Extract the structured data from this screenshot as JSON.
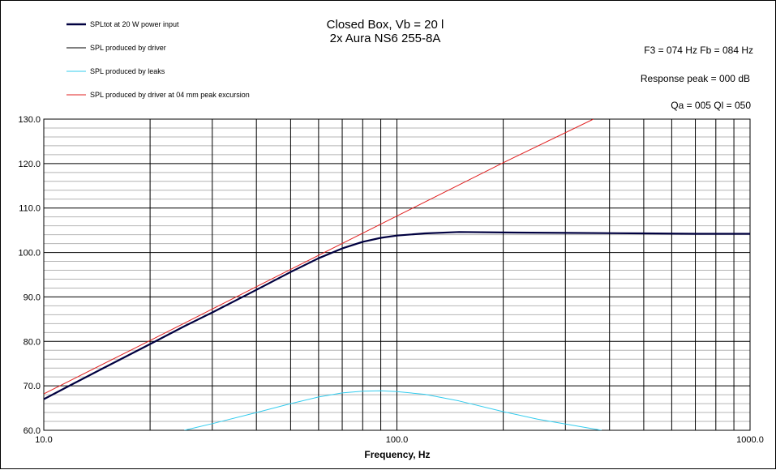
{
  "chart_data": {
    "type": "line",
    "title": [
      "Closed Box, Vb = 20 l",
      "2x Aura NS6 255-8A"
    ],
    "info": [
      "F3 = 074 Hz  Fb = 084 Hz",
      "Response peak = 000  dB",
      "Qa = 005   Ql = 050"
    ],
    "xlabel": "Frequency, Hz",
    "ylabel": "",
    "xscale": "log",
    "xlim": [
      10,
      1000
    ],
    "ylim": [
      60,
      130
    ],
    "x_ticks": [
      10,
      100,
      1000
    ],
    "x_tick_labels": [
      "10.0",
      "100.0",
      "1000.0"
    ],
    "y_ticks": [
      60,
      70,
      80,
      90,
      100,
      110,
      120,
      130
    ],
    "y_tick_labels": [
      "60.0",
      "70.0",
      "80.0",
      "90.0",
      "100.0",
      "110.0",
      "120.0",
      "130.0"
    ],
    "grid": true,
    "legend_position": "top-left",
    "series": [
      {
        "name": "SPLtot at 20 W power input",
        "color": "#000040",
        "x": [
          10,
          12,
          15,
          20,
          25,
          30,
          40,
          50,
          60,
          70,
          80,
          90,
          100,
          120,
          150,
          200,
          300,
          500,
          700,
          1000
        ],
        "y": [
          67.0,
          70.3,
          74.3,
          79.4,
          83.4,
          86.5,
          91.6,
          95.6,
          98.7,
          100.9,
          102.4,
          103.3,
          103.8,
          104.3,
          104.6,
          104.5,
          104.4,
          104.3,
          104.2,
          104.2
        ]
      },
      {
        "name": "SPL produced by driver",
        "color": "#000000",
        "x": [
          10,
          12,
          15,
          20,
          25,
          30,
          40,
          50,
          60,
          70,
          80,
          90,
          100,
          120,
          150,
          200,
          300,
          500,
          700,
          1000
        ],
        "y": [
          67.0,
          70.3,
          74.3,
          79.4,
          83.4,
          86.5,
          91.6,
          95.6,
          98.7,
          100.9,
          102.4,
          103.3,
          103.8,
          104.3,
          104.6,
          104.5,
          104.4,
          104.3,
          104.2,
          104.2
        ]
      },
      {
        "name": "SPL produced by leaks",
        "color": "#33CCEE",
        "x": [
          25,
          30,
          40,
          50,
          60,
          70,
          80,
          90,
          100,
          120,
          150,
          200,
          250,
          300,
          380
        ],
        "y": [
          60.0,
          61.5,
          64.0,
          66.0,
          67.5,
          68.4,
          68.8,
          68.9,
          68.7,
          68.1,
          66.6,
          64.2,
          62.5,
          61.4,
          60.0
        ]
      },
      {
        "name": "SPL produced by driver at 04 mm peak excursion",
        "color": "#E02020",
        "x": [
          10,
          20,
          50,
          100,
          200,
          360
        ],
        "y": [
          68.2,
          80.2,
          96.2,
          108.2,
          120.2,
          130.0
        ]
      }
    ]
  }
}
